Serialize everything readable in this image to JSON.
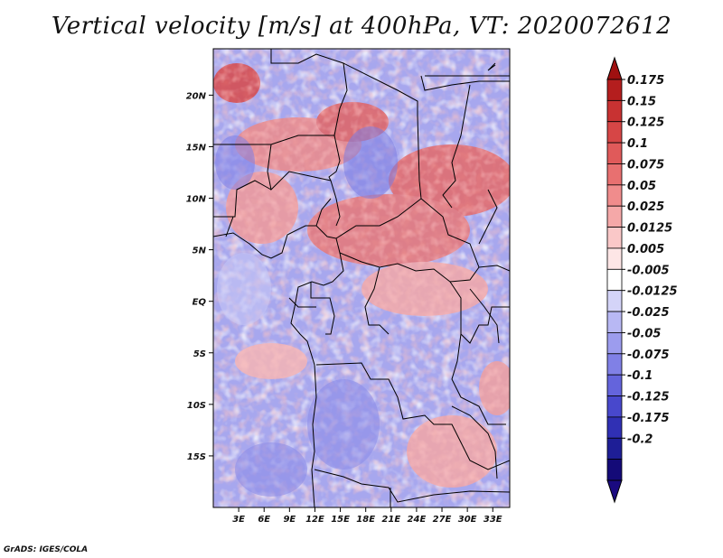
{
  "title": "Vertical velocity [m/s] at 400hPa, VT: 2020072612",
  "credit": "GrADS: IGES/COLA",
  "map": {
    "lon_range": [
      0,
      35
    ],
    "lat_range": [
      -20,
      24.5
    ],
    "lon_ticks": [
      "3E",
      "6E",
      "9E",
      "12E",
      "15E",
      "18E",
      "21E",
      "24E",
      "27E",
      "30E",
      "33E"
    ],
    "lon_tick_values": [
      3,
      6,
      9,
      12,
      15,
      18,
      21,
      24,
      27,
      30,
      33
    ],
    "lat_ticks": [
      "20N",
      "15N",
      "10N",
      "5N",
      "EQ",
      "5S",
      "10S",
      "15S"
    ],
    "lat_tick_values": [
      20,
      15,
      10,
      5,
      0,
      -5,
      -10,
      -15
    ]
  },
  "colorbar": {
    "labels": [
      "0.175",
      "0.15",
      "0.125",
      "0.1",
      "0.075",
      "0.05",
      "0.025",
      "0.0125",
      "0.005",
      "-0.005",
      "-0.0125",
      "-0.025",
      "-0.05",
      "-0.075",
      "-0.1",
      "-0.125",
      "-0.175",
      "-0.2"
    ],
    "colors": [
      "#b41e1e",
      "#c83232",
      "#d64646",
      "#e05a5a",
      "#e87070",
      "#f08c8c",
      "#f5a8a8",
      "#fac8c8",
      "#fde6e6",
      "#ffffff",
      "#d4d4f8",
      "#b8b8f4",
      "#9c9cee",
      "#8080e6",
      "#6464dc",
      "#4848cc",
      "#3030b4",
      "#1e1e96",
      "#140a78"
    ],
    "top_color": "#a01010",
    "bottom_color": "#1a0a80"
  }
}
